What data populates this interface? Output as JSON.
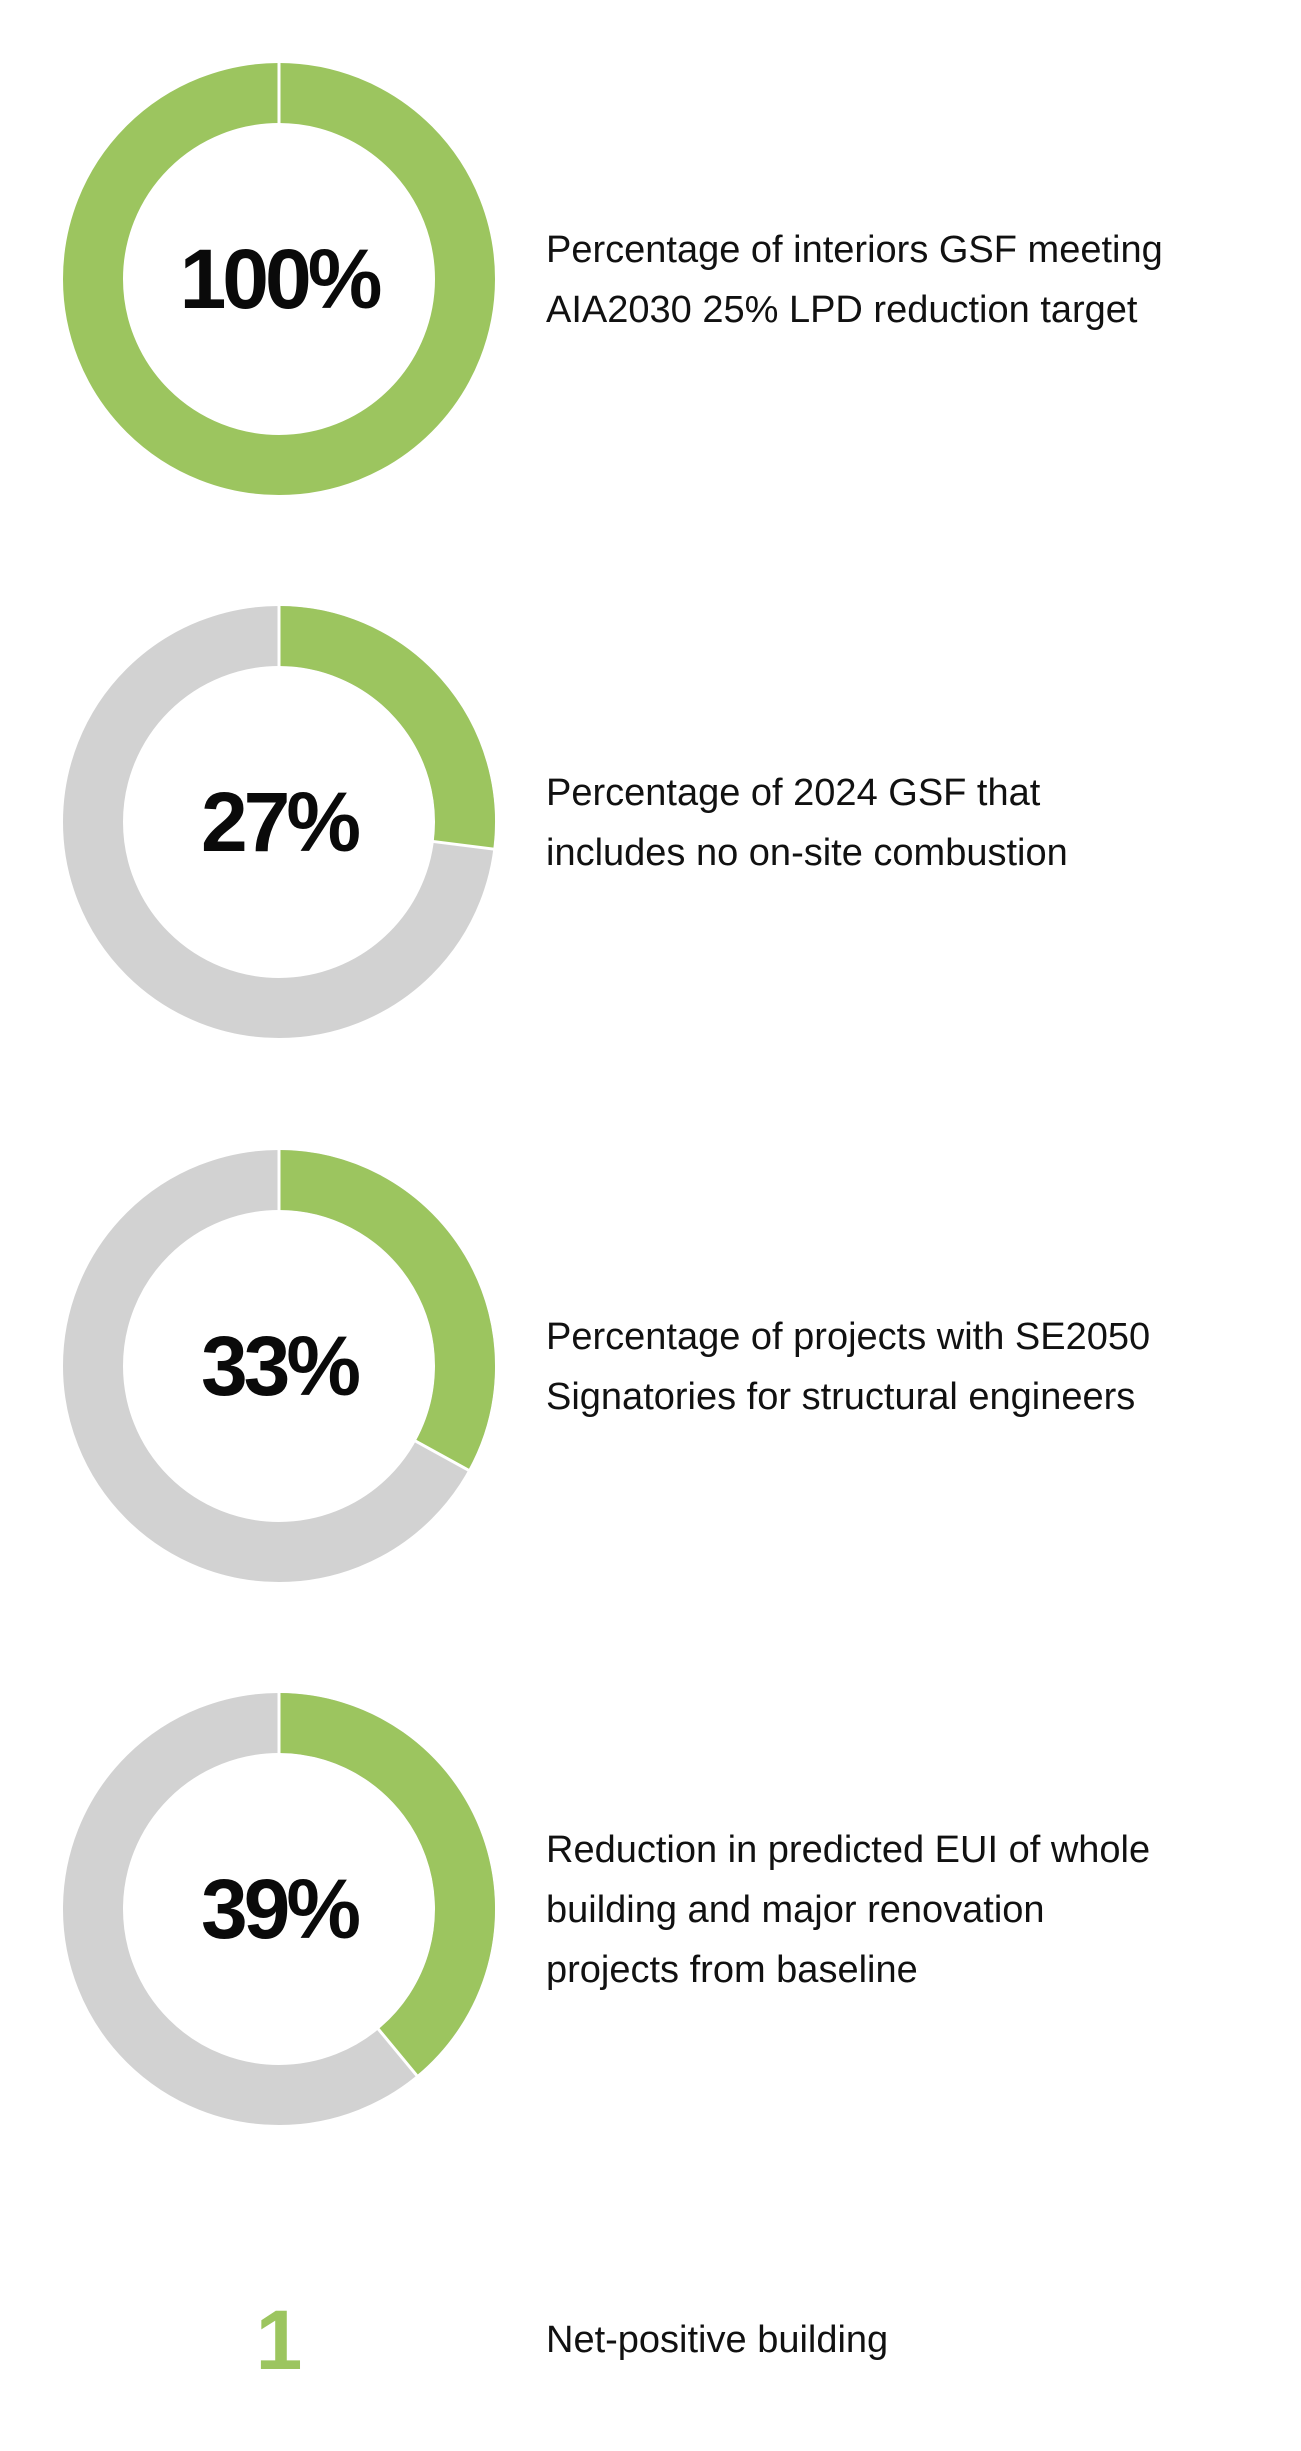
{
  "colors": {
    "accent": "#9cc55f",
    "track": "#d2d2d2",
    "separator": "#ffffff"
  },
  "chart_data": [
    {
      "type": "pie",
      "subtype": "donut",
      "value": 100,
      "max": 100,
      "center_label": "100%",
      "caption_lines": [
        "Percentage of interiors GSF meeting",
        "AIA2030 25% LPD reduction target"
      ]
    },
    {
      "type": "pie",
      "subtype": "donut",
      "value": 27,
      "max": 100,
      "center_label": "27%",
      "caption_lines": [
        "Percentage of 2024 GSF that",
        "includes no on-site combustion"
      ]
    },
    {
      "type": "pie",
      "subtype": "donut",
      "value": 33,
      "max": 100,
      "center_label": "33%",
      "caption_lines": [
        "Percentage of projects with SE2050",
        "Signatories for structural engineers"
      ]
    },
    {
      "type": "pie",
      "subtype": "donut",
      "value": 39,
      "max": 100,
      "center_label": "39%",
      "caption_lines": [
        "Reduction in predicted EUI of whole",
        "building and major renovation",
        "projects from baseline"
      ]
    }
  ],
  "count_metric": {
    "value": "1",
    "caption_lines": [
      "Net-positive building"
    ]
  }
}
